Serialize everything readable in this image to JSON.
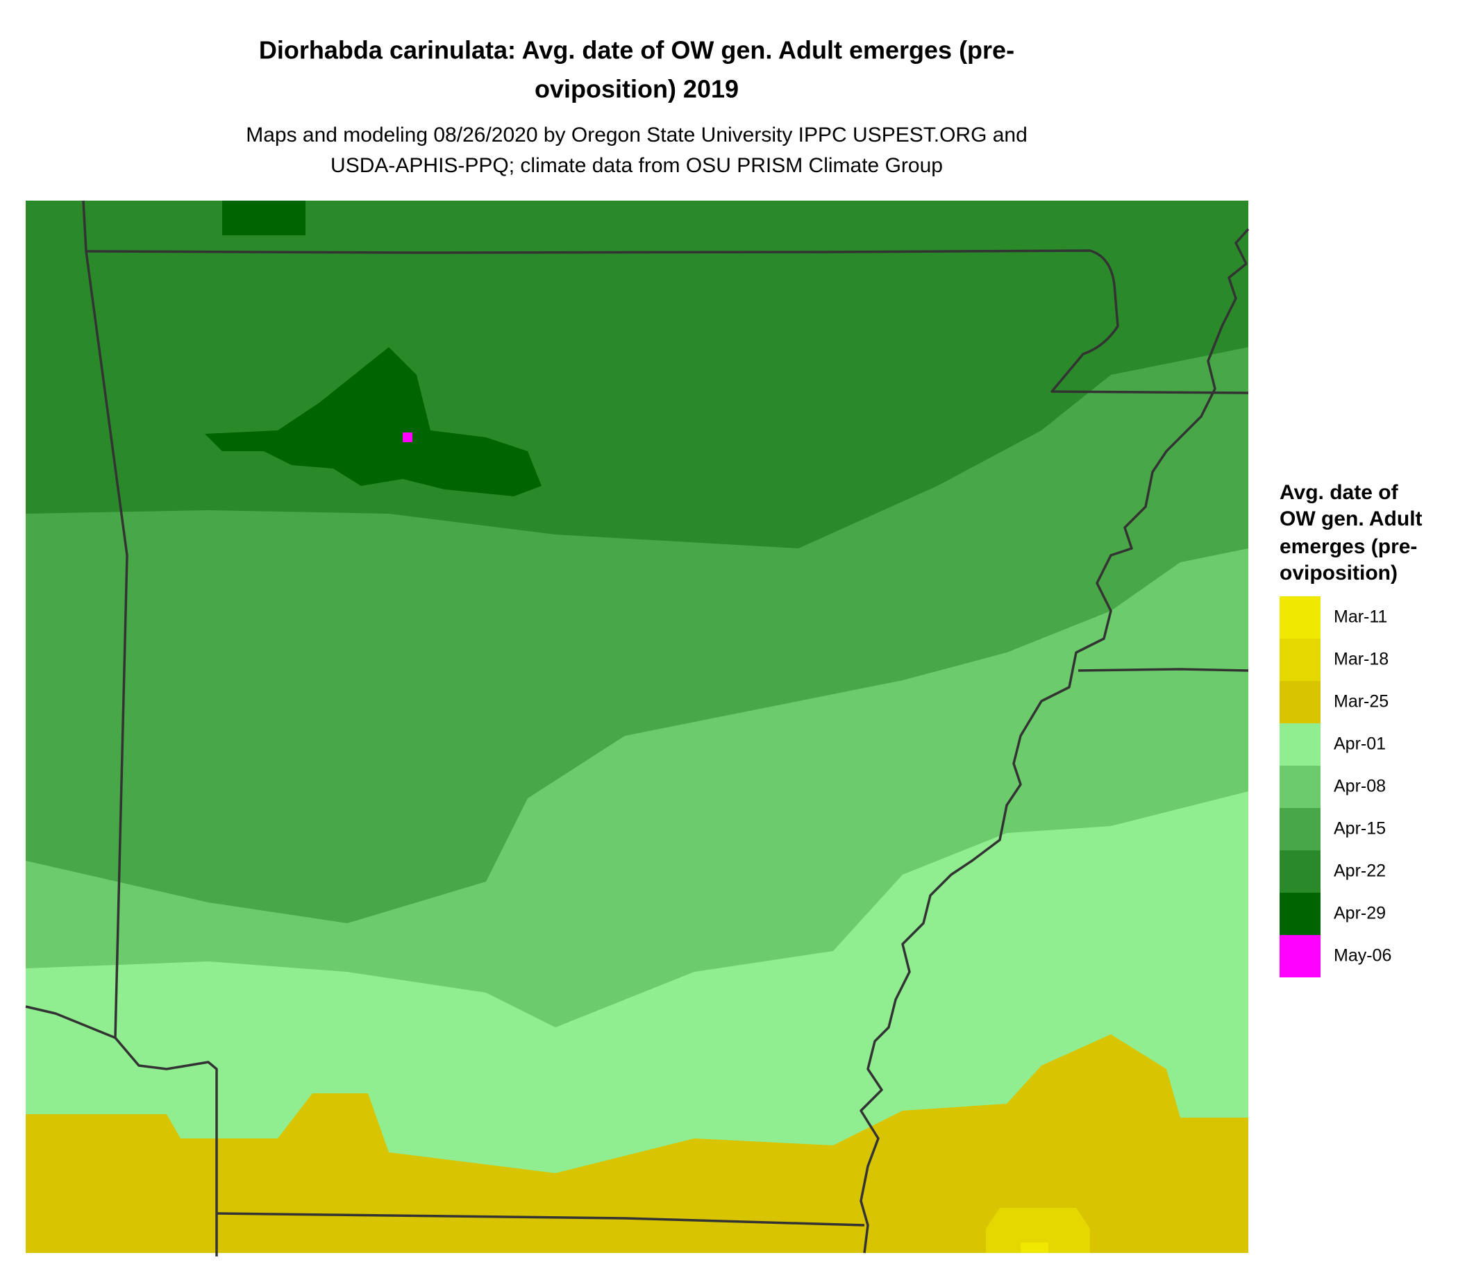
{
  "title": [
    "Diorhabda carinulata: Avg. date of OW gen. Adult emerges (pre-",
    "oviposition) 2019"
  ],
  "subtitle": [
    "Maps and modeling 08/26/2020 by Oregon State University IPPC USPEST.ORG and",
    "USDA-APHIS-PPQ; climate data from OSU PRISM Climate Group"
  ],
  "legend": {
    "title": [
      "Avg. date of",
      "OW gen. Adult",
      "emerges (pre-",
      "oviposition)"
    ],
    "items": [
      {
        "label": "Mar-11",
        "color": "#f0e800"
      },
      {
        "label": "Mar-18",
        "color": "#e4d800"
      },
      {
        "label": "Mar-25",
        "color": "#d8c400"
      },
      {
        "label": "Apr-01",
        "color": "#90ee90"
      },
      {
        "label": "Apr-08",
        "color": "#6ccc6c"
      },
      {
        "label": "Apr-15",
        "color": "#48a848"
      },
      {
        "label": "Apr-22",
        "color": "#2a8a2a"
      },
      {
        "label": "Apr-29",
        "color": "#006400"
      },
      {
        "label": "May-06",
        "color": "#ff00ff"
      }
    ]
  }
}
